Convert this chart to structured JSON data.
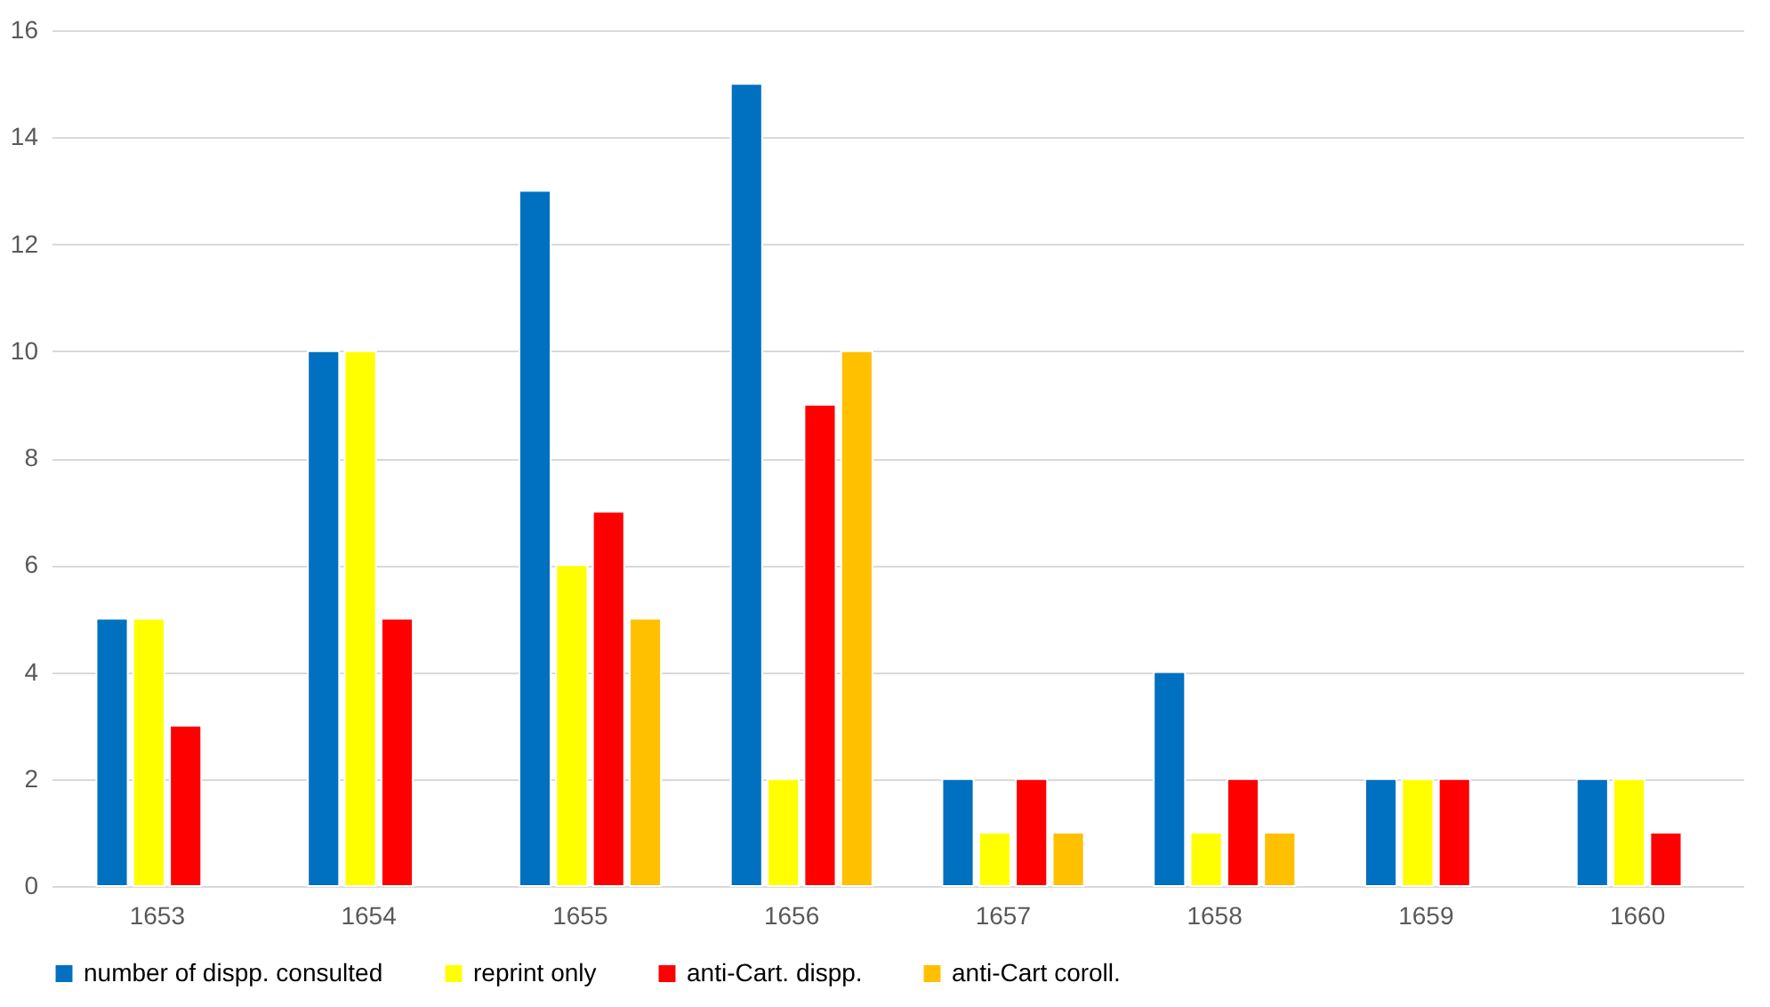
{
  "chart_data": {
    "type": "bar",
    "categories": [
      "1653",
      "1654",
      "1655",
      "1656",
      "1657",
      "1658",
      "1659",
      "1660"
    ],
    "series": [
      {
        "name": "number of dispp. consulted",
        "color": "#0070c0",
        "values": [
          5,
          10,
          13,
          15,
          2,
          4,
          2,
          2
        ]
      },
      {
        "name": "reprint only",
        "color": "#ffff00",
        "values": [
          5,
          10,
          6,
          2,
          1,
          1,
          2,
          2
        ]
      },
      {
        "name": "anti-Cart. dispp.",
        "color": "#ff0000",
        "values": [
          3,
          5,
          7,
          9,
          2,
          2,
          2,
          1
        ]
      },
      {
        "name": "anti-Cart coroll.",
        "color": "#ffc000",
        "values": [
          null,
          null,
          5,
          10,
          1,
          1,
          null,
          null
        ]
      }
    ],
    "ylim": [
      0,
      16
    ],
    "yticks": [
      0,
      2,
      4,
      6,
      8,
      10,
      12,
      14,
      16
    ],
    "grid": "y",
    "legend": "bottom"
  }
}
